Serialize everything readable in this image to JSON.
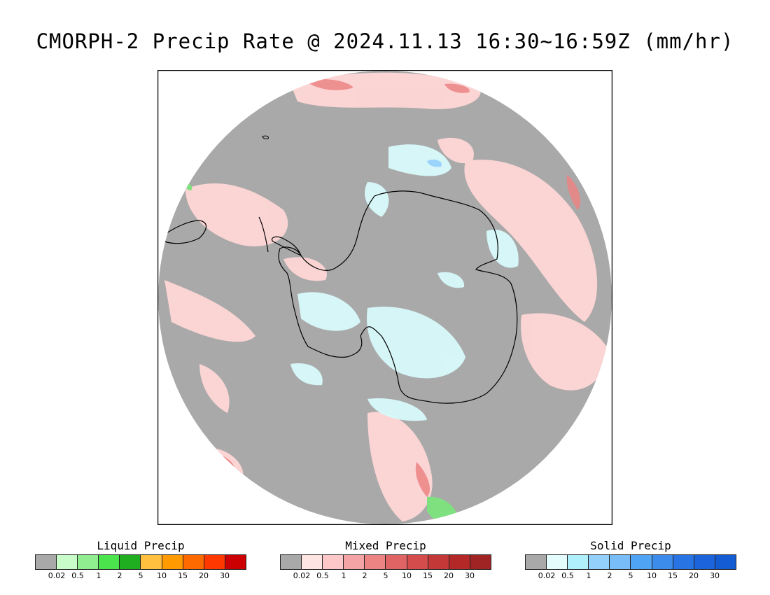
{
  "title": "CMORPH-2 Precip Rate @ 2024.11.13 16:30~16:59Z (mm/hr)",
  "map": {
    "projection": "south-polar-stereographic",
    "background_color": "#a9a9a9",
    "coastline_color": "#000000"
  },
  "legends": [
    {
      "title": "Liquid Precip",
      "colors": [
        "#a9a9a9",
        "#c8fcc8",
        "#90ee90",
        "#4ce44c",
        "#1fae1f",
        "#ffbf3f",
        "#ff9a00",
        "#ff6a00",
        "#ff3800",
        "#cc0000"
      ],
      "ticks": [
        "0.02",
        "0.5",
        "1",
        "2",
        "5",
        "10",
        "15",
        "20",
        "30"
      ]
    },
    {
      "title": "Mixed Precip",
      "colors": [
        "#a9a9a9",
        "#ffe4e4",
        "#ffc8c8",
        "#f4a4a4",
        "#ec8484",
        "#e06464",
        "#d44c4c",
        "#c43838",
        "#b42828",
        "#a02424"
      ],
      "ticks": [
        "0.02",
        "0.5",
        "1",
        "2",
        "5",
        "10",
        "15",
        "20",
        "30"
      ]
    },
    {
      "title": "Solid Precip",
      "colors": [
        "#a9a9a9",
        "#e4fcfc",
        "#b0f0fc",
        "#94d0fc",
        "#78bcf8",
        "#50a4f4",
        "#3c8cec",
        "#2874e4",
        "#1c64dc",
        "#145cd4"
      ],
      "ticks": [
        "0.02",
        "0.5",
        "1",
        "2",
        "5",
        "10",
        "15",
        "20",
        "30"
      ]
    }
  ]
}
